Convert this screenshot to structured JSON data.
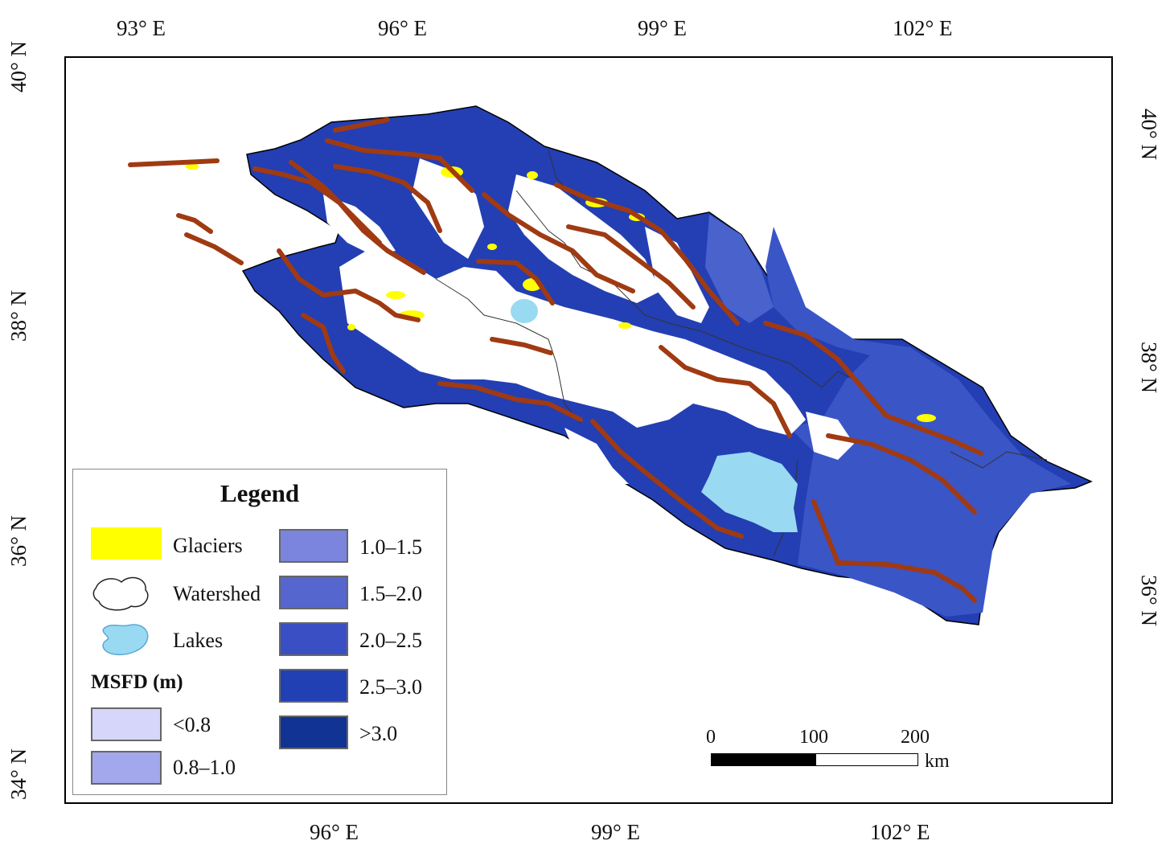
{
  "map": {
    "top_lon_ticks": [
      "93° E",
      "96° E",
      "99° E",
      "102° E"
    ],
    "bottom_lon_ticks": [
      "96° E",
      "99° E",
      "102° E"
    ],
    "left_lat_ticks": [
      "40° N",
      "38° N",
      "36° N",
      "34° N"
    ],
    "right_lat_ticks": [
      "40° N",
      "38° N",
      "36° N"
    ]
  },
  "legend": {
    "title": "Legend",
    "glaciers_label": "Glaciers",
    "watershed_label": "Watershed",
    "lakes_label": "Lakes",
    "msfd_heading": "MSFD (m)",
    "classes": [
      {
        "label": "<0.8",
        "color": "#d6d6fb"
      },
      {
        "label": "0.8–1.0",
        "color": "#a3a7ec"
      },
      {
        "label": "1.0–1.5",
        "color": "#7b85de"
      },
      {
        "label": "1.5–2.0",
        "color": "#5566cf"
      },
      {
        "label": "2.0–2.5",
        "color": "#3a4fc4"
      },
      {
        "label": "2.5–3.0",
        "color": "#2140b3"
      },
      {
        "label": ">3.0",
        "color": "#103394"
      }
    ],
    "glacier_color": "#ffff00",
    "lake_color": "#9ad9f2",
    "fault_color": "#a03a12"
  },
  "scale_bar": {
    "labels": [
      "0",
      "100",
      "200"
    ],
    "unit": "km"
  }
}
